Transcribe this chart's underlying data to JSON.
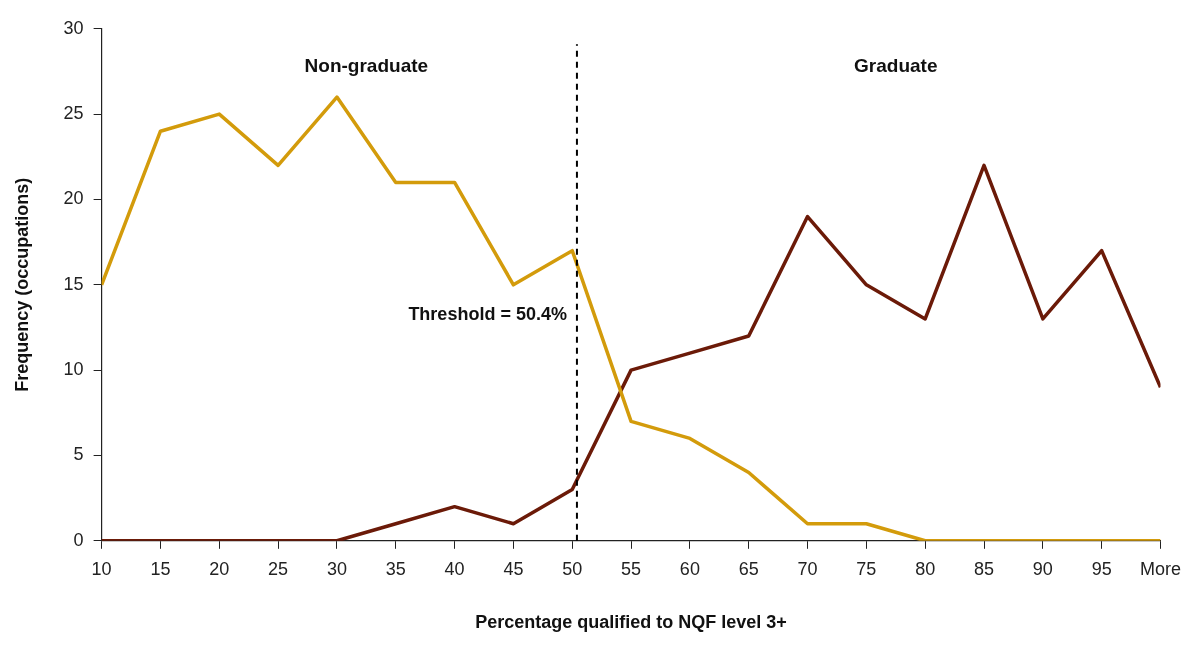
{
  "chart_data": {
    "type": "line",
    "xlabel": "Percentage qualified to NQF level 3+",
    "ylabel": "Frequency (occupations)",
    "x": [
      10,
      15,
      20,
      25,
      30,
      35,
      40,
      45,
      50,
      55,
      60,
      65,
      70,
      75,
      80,
      85,
      90,
      95,
      100
    ],
    "series": [
      {
        "color": "#d39b0b",
        "values": [
          15,
          24,
          25,
          22,
          26,
          21,
          21,
          15,
          17,
          7,
          6,
          4,
          1,
          1,
          0,
          0,
          0,
          0,
          0
        ]
      },
      {
        "color": "#6b1a08",
        "values": [
          0,
          0,
          0,
          0,
          0,
          1,
          2,
          1,
          3,
          10,
          11,
          12,
          19,
          15,
          13,
          22,
          13,
          17,
          9
        ]
      }
    ],
    "xlim": [
      10,
      100
    ],
    "xticks": [
      10,
      15,
      20,
      25,
      30,
      35,
      40,
      45,
      50,
      55,
      60,
      65,
      70,
      75,
      80,
      85,
      90,
      95,
      {
        "value": 100,
        "label": "More"
      }
    ],
    "ylim": [
      0,
      30
    ],
    "yticks": [
      0,
      5,
      10,
      15,
      20,
      25,
      30
    ],
    "ref_lines": [
      {
        "axis": "x",
        "value": 50.4,
        "label": "Threshold = 50.4%",
        "color": "#000000",
        "line_style": "dashed"
      }
    ],
    "annotations": [
      "Non-graduate",
      "Graduate"
    ],
    "grid": false,
    "legend": false,
    "marker": "none",
    "line_style": "solid"
  }
}
